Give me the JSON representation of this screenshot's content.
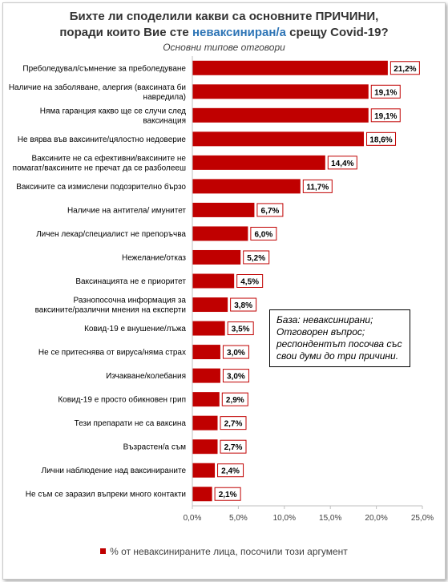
{
  "title": {
    "line1": "Бихте ли споделили какви са основните ПРИЧИНИ,",
    "line2_prefix": "поради които Вие сте ",
    "line2_highlight": "неваксиниран/а",
    "line2_suffix": " срещу Covid-19?"
  },
  "subtitle": "Основни   типове отговори",
  "note": {
    "line1": "База: неваксинирани;",
    "line2": "Отговорен въпрос;",
    "line3": "респондентът посочва със",
    "line4": "свои думи до три причини."
  },
  "legend": {
    "label": "% от неваксинираните лица, посочили този аргумент"
  },
  "colors": {
    "bar": "#c00000",
    "highlight": "#2e75b6"
  },
  "chart_data": {
    "type": "bar",
    "orientation": "horizontal",
    "title": "Бихте ли споделили какви са основните ПРИЧИНИ, поради които Вие сте неваксиниран/а срещу Covid-19?",
    "subtitle": "Основни   типове отговори",
    "categories": [
      [
        "Преболедувал/съмнение за преболедуване"
      ],
      [
        "Наличие на заболяване, алергия (ваксината би",
        "навредила)"
      ],
      [
        "Няма гаранция какво ще се случи след",
        "ваксинация"
      ],
      [
        "Не вярва във ваксините/цялостно недоверие"
      ],
      [
        "Ваксините не са ефективни/ваксините не",
        "помагат/ваксините не пречат да се разболееш"
      ],
      [
        "Ваксините са измислени подозрително бързо"
      ],
      [
        "Наличие на антитела/ имунитет"
      ],
      [
        "Личен лекар/специалист не препоръчва"
      ],
      [
        "Нежелание/отказ"
      ],
      [
        "Ваксинацията не е приоритет"
      ],
      [
        "Разнопосочна информация за",
        "ваксините/различни мнения на експерти"
      ],
      [
        "Ковид-19 е внушение/лъжа"
      ],
      [
        "Не се притеснява от вируса/няма страх"
      ],
      [
        "Изчакване/колебания"
      ],
      [
        "Ковид-19 е просто обикновен грип"
      ],
      [
        "Тези препарати не са ваксина"
      ],
      [
        "Възрастен/а съм"
      ],
      [
        "Лични  наблюдение над ваксинираните"
      ],
      [
        "Не съм се заразил въпреки много контакти"
      ]
    ],
    "series": [
      {
        "name": "% от неваксинираните лица, посочили този аргумент",
        "values": [
          21.2,
          19.1,
          19.1,
          18.6,
          14.4,
          11.7,
          6.7,
          6.0,
          5.2,
          4.5,
          3.8,
          3.5,
          3.0,
          3.0,
          2.9,
          2.7,
          2.7,
          2.4,
          2.1
        ],
        "data_labels": [
          "21,2%",
          "19,1%",
          "19,1%",
          "18,6%",
          "14,4%",
          "11,7%",
          "6,7%",
          "6,0%",
          "5,2%",
          "4,5%",
          "3,8%",
          "3,5%",
          "3,0%",
          "3,0%",
          "2,9%",
          "2,7%",
          "2,7%",
          "2,4%",
          "2,1%"
        ]
      }
    ],
    "xlim": [
      0,
      25
    ],
    "xticks": [
      0,
      5,
      10,
      15,
      20,
      25
    ],
    "xtick_labels": [
      "0,0%",
      "5,0%",
      "10,0%",
      "15,0%",
      "20,0%",
      "25,0%"
    ],
    "grid": false,
    "legend_position": "bottom"
  }
}
